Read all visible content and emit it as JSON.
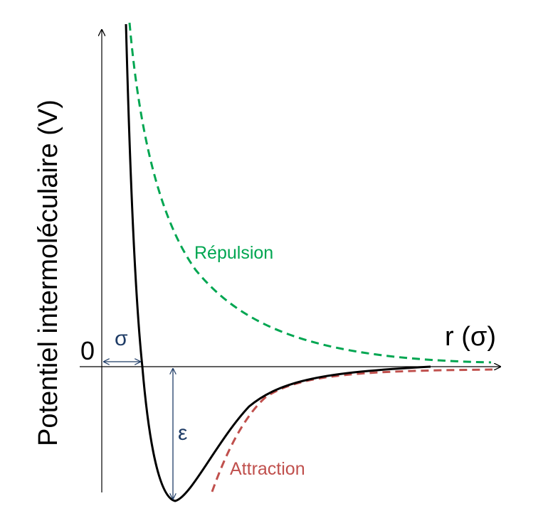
{
  "y_axis_label": "Potentiel intermoléculaire (V)",
  "x_axis_label": "r (σ)",
  "zero_label": "0",
  "sigma_label": "σ",
  "epsilon_label": "ε",
  "repulsion_label": "Répulsion",
  "attraction_label": "Attraction",
  "colors": {
    "potential": "#000000",
    "repulsion": "#00a651",
    "attraction": "#c0504d",
    "annotation": "#1f3c66",
    "axis": "#000000"
  }
}
